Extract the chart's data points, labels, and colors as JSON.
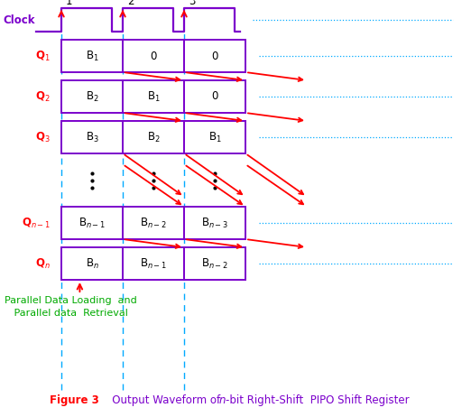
{
  "clock_label": "Clock",
  "clock_numbers": [
    "1",
    "2",
    "3"
  ],
  "rows": [
    {
      "label": "Q$_1$",
      "cells": [
        "B$_1$",
        "0",
        "0"
      ]
    },
    {
      "label": "Q$_2$",
      "cells": [
        "B$_2$",
        "B$_1$",
        "0"
      ]
    },
    {
      "label": "Q$_3$",
      "cells": [
        "B$_3$",
        "B$_2$",
        "B$_1$"
      ]
    },
    {
      "label": "Q$_{n-1}$",
      "cells": [
        "B$_{n-1}$",
        "B$_{n-2}$",
        "B$_{n-3}$"
      ]
    },
    {
      "label": "Q$_n$",
      "cells": [
        "B$_n$",
        "B$_{n-1}$",
        "B$_{n-2}$"
      ]
    }
  ],
  "purple": "#7B00CC",
  "red": "#FF0000",
  "cyan": "#00AAFF",
  "green": "#00AA00",
  "bottom_text_line1": "Parallel Data Loading  and",
  "bottom_text_line2": "   Parallel data  Retrieval",
  "figure_label": "Figure 3",
  "caption_pre": "   Output Waveform of ",
  "caption_italic": "n",
  "caption_post": "-bit Right-Shift  PIPO Shift Register"
}
